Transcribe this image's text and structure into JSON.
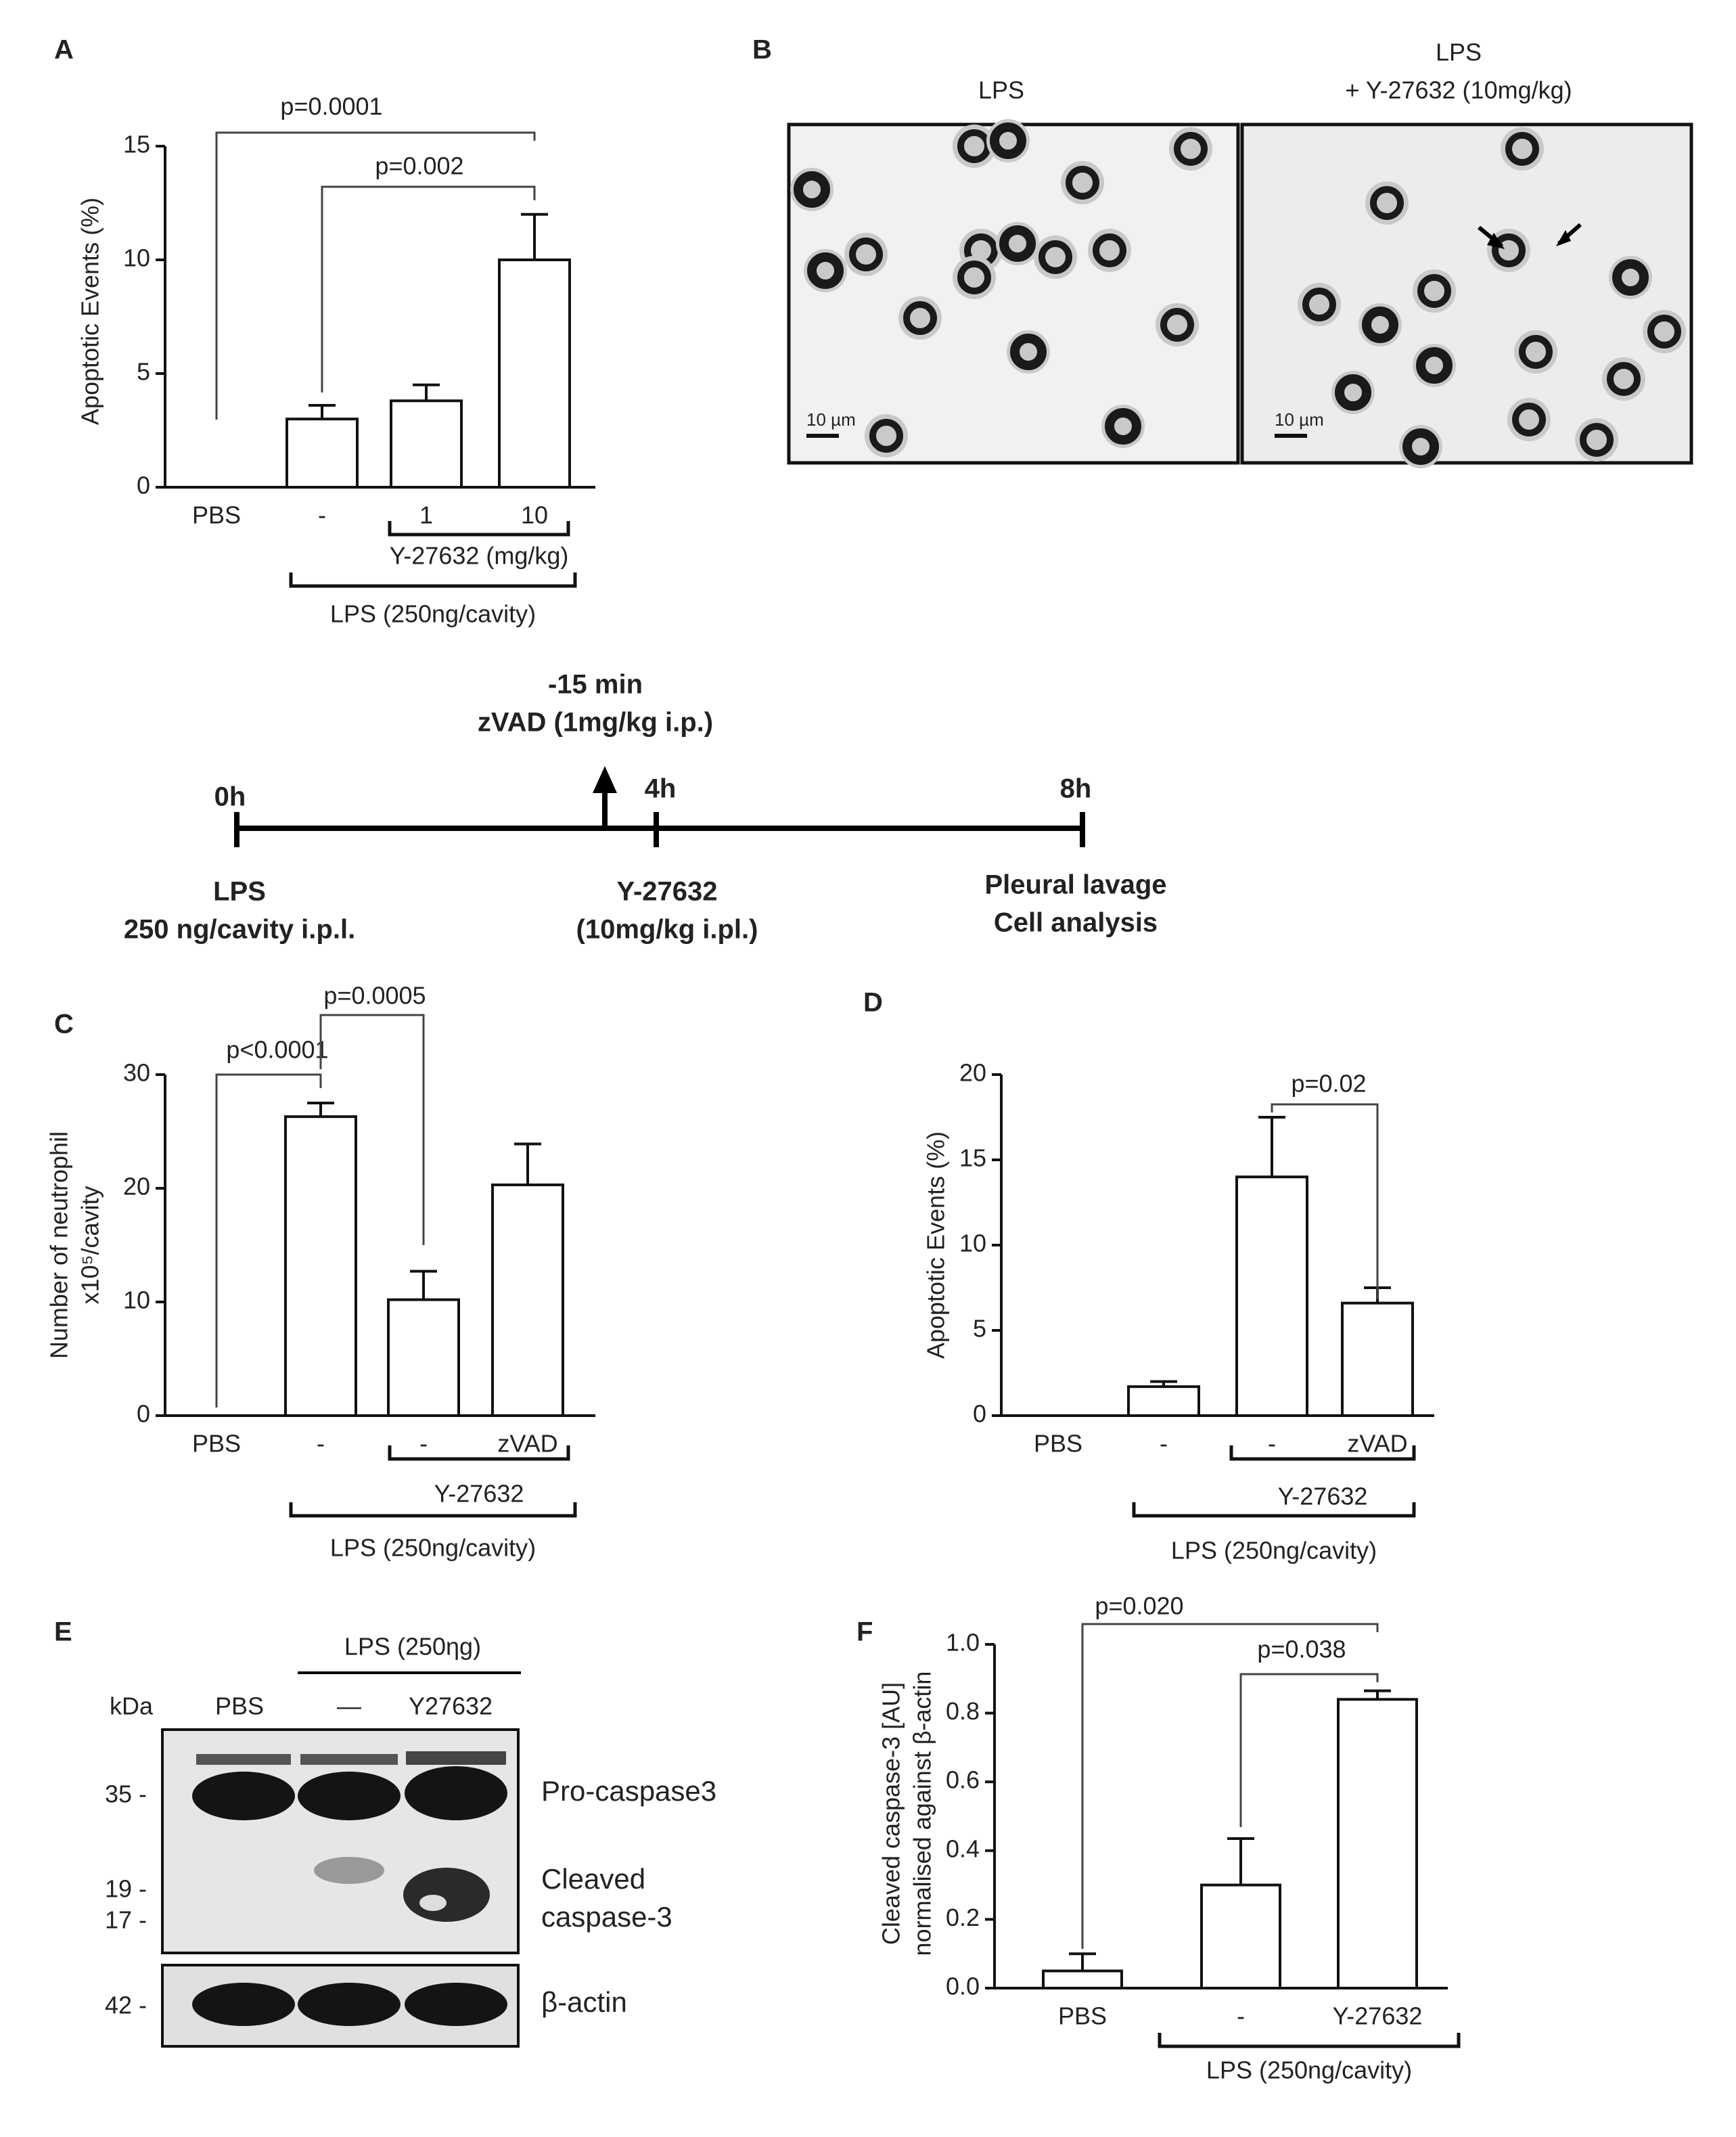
{
  "panel_labels": [
    "A",
    "B",
    "C",
    "D",
    "E",
    "F"
  ],
  "chart_data": [
    {
      "type": "bar",
      "ylabel": [
        "Apoptotic Events (%)"
      ],
      "categories": [
        "PBS",
        "-",
        "1",
        "10"
      ],
      "values": [
        0,
        3,
        3.8,
        10
      ],
      "errors": [
        0,
        0.6,
        0.7,
        2
      ],
      "color": "#ffffff",
      "ylim": [
        0,
        15
      ],
      "yticks": [
        0,
        5,
        10,
        15
      ],
      "annotations": [
        "p=0.0001",
        "p=0.002"
      ],
      "groups": [
        "Y-27632 (mg/kg)",
        "LPS (250ng/cavity)"
      ]
    },
    {
      "type": "bar",
      "ylabel": [
        "Number of neutrophil",
        "x10⁵/cavity"
      ],
      "categories": [
        "PBS",
        "-",
        "-",
        "zVAD"
      ],
      "values": [
        0,
        26.3,
        10.2,
        20.3
      ],
      "errors": [
        0,
        1.2,
        2.5,
        3.6
      ],
      "color": "#ffffff",
      "ylim": [
        0,
        30
      ],
      "yticks": [
        0,
        10,
        20,
        30
      ],
      "annotations": [
        "p<0.0001",
        "p=0.0005"
      ],
      "groups": [
        "Y-27632",
        "LPS (250ng/cavity)"
      ]
    },
    {
      "type": "bar",
      "ylabel": [
        "Apoptotic Events (%)"
      ],
      "categories": [
        "PBS",
        "-",
        "-",
        "zVAD"
      ],
      "values": [
        0,
        1.7,
        14,
        6.6
      ],
      "errors": [
        0,
        0.3,
        3.5,
        0.9
      ],
      "color": "#ffffff",
      "ylim": [
        0,
        20
      ],
      "yticks": [
        0,
        5,
        10,
        15,
        20
      ],
      "annotations": [
        "p=0.02"
      ],
      "groups": [
        "Y-27632",
        "LPS (250ng/cavity)"
      ]
    },
    {
      "type": "bar",
      "ylabel": [
        "Cleaved caspase-3 [AU]",
        "normalised against β-actin"
      ],
      "categories": [
        "PBS",
        "-",
        "Y-27632"
      ],
      "values": [
        0.05,
        0.3,
        0.84
      ],
      "errors": [
        0.05,
        0.135,
        0.025
      ],
      "color": "#ffffff",
      "ylim": [
        0,
        1
      ],
      "yticks": [
        {
          "value": 0,
          "label": "0.0"
        },
        0.2,
        0.4,
        0.6,
        0.8,
        {
          "value": 1,
          "label": "1.0"
        }
      ],
      "annotations": [
        "p=0.020",
        "p=0.038"
      ],
      "groups": [
        "LPS (250ng/cavity)"
      ]
    }
  ],
  "micrographs": {
    "titles": [
      "LPS",
      "LPS",
      "+ Y-27632 (10mg/kg)"
    ],
    "scale_bars": [
      "10 µm",
      "10 µm"
    ]
  },
  "timeline": {
    "times": [
      "0h",
      "4h",
      "8h"
    ],
    "pretreatment": [
      "-15 min",
      "zVAD (1mg/kg i.p.)"
    ],
    "events": [
      [
        "LPS",
        "250 ng/cavity i.p.l."
      ],
      [
        "Y-27632",
        "(10mg/kg i.pl.)"
      ],
      [
        "Pleural lavage",
        "Cell analysis"
      ]
    ]
  },
  "western_blot": {
    "treatment": "LPS (250ηg)",
    "lane_header": "kDa",
    "lanes": [
      "PBS",
      "—",
      "Y27632"
    ],
    "markers": [
      "35 -",
      "19 -",
      "17 -",
      "42 -"
    ],
    "bands": [
      "Pro-caspase3",
      "Cleaved",
      "caspase-3",
      "β-actin"
    ]
  }
}
